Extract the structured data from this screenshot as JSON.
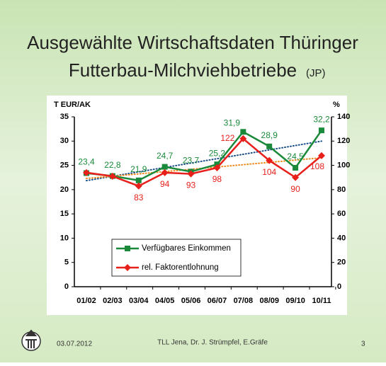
{
  "title": [
    "Ausgewählte Wirtschaftsdaten Thüringer",
    "Futterbau-Milchviehbetriebe"
  ],
  "title_note": "(JP)",
  "chart_data": {
    "type": "line",
    "ylabel": "T EUR/AK",
    "y2label": "%",
    "categories": [
      "01/02",
      "02/03",
      "03/04",
      "04/05",
      "05/06",
      "06/07",
      "07/08",
      "08/09",
      "09/10",
      "10/11"
    ],
    "series": [
      {
        "name": "Verfügbares Einkommen",
        "color": "#1a8a3a",
        "marker": "square",
        "trend_color": "#1a4f8a",
        "values": [
          23.4,
          22.8,
          21.9,
          24.7,
          23.7,
          25.2,
          31.9,
          28.9,
          24.5,
          32.2
        ],
        "value_labels": [
          "23,4",
          "22,8",
          "21,9",
          "24,7",
          "23,7",
          "25,2",
          "31,9",
          "28,9",
          "24,5",
          "32,2"
        ]
      },
      {
        "name": "rel. Faktorentlohnung",
        "color": "#e8201c",
        "marker": "diamond",
        "trend_color": "#f08a1c",
        "axis": "y2",
        "values": [
          94,
          91,
          83,
          94,
          93,
          98,
          122,
          104,
          90,
          108
        ],
        "value_labels": [
          null,
          null,
          "83",
          "94",
          "93",
          "98",
          "122",
          "104",
          "90",
          "108"
        ]
      }
    ],
    "ylim": [
      0,
      35
    ],
    "yticks": [
      0,
      5,
      10,
      15,
      20,
      25,
      30,
      35
    ],
    "y2lim": [
      0,
      140
    ],
    "y2ticks": [
      0,
      20,
      40,
      60,
      80,
      100,
      120,
      140
    ],
    "trendlines": true,
    "legend": "lower left"
  },
  "footer": {
    "date": "03.07.2012",
    "author": "TLL Jena, Dr. J. Strümpfel, E.Gräfe",
    "page": "3"
  }
}
